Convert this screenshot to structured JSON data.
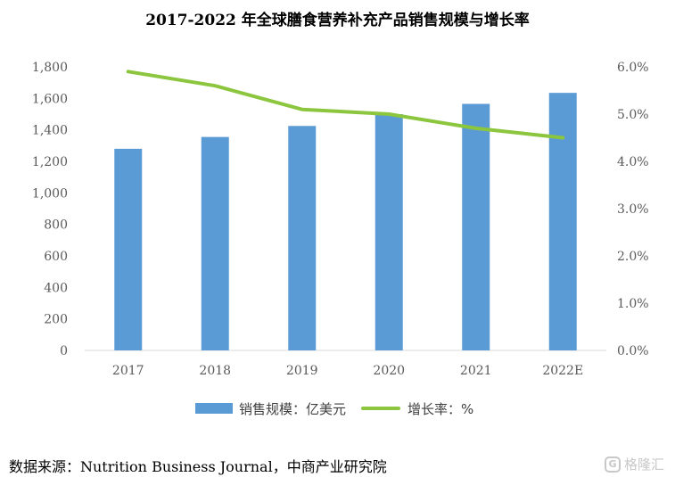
{
  "chart_data": {
    "type": "bar",
    "title": "2017-2022 年全球膳食营养补充产品销售规模与增长率",
    "categories": [
      "2017",
      "2018",
      "2019",
      "2020",
      "2021",
      "2022E"
    ],
    "series": [
      {
        "name": "销售规模：亿美元",
        "type": "bar",
        "axis": "left",
        "color": "#5B9BD5",
        "values": [
          1280,
          1355,
          1425,
          1500,
          1565,
          1635
        ]
      },
      {
        "name": "增长率：%",
        "type": "line",
        "axis": "right",
        "color": "#8CC63F",
        "values": [
          5.9,
          5.6,
          5.1,
          5.0,
          4.7,
          4.5
        ]
      }
    ],
    "y_left": {
      "min": 0,
      "max": 1800,
      "step": 200,
      "tick_labels": [
        "0",
        "200",
        "400",
        "600",
        "800",
        "1,000",
        "1,200",
        "1,400",
        "1,600",
        "1,800"
      ]
    },
    "y_right": {
      "min": 0,
      "max": 6,
      "step": 1,
      "tick_labels": [
        "0.0%",
        "1.0%",
        "2.0%",
        "3.0%",
        "4.0%",
        "5.0%",
        "6.0%"
      ]
    },
    "grid": false,
    "legend_position": "bottom"
  },
  "source": "数据来源：Nutrition Business Journal，中商产业研究院",
  "watermark": {
    "logo_letter": "G",
    "text": "格隆汇"
  }
}
